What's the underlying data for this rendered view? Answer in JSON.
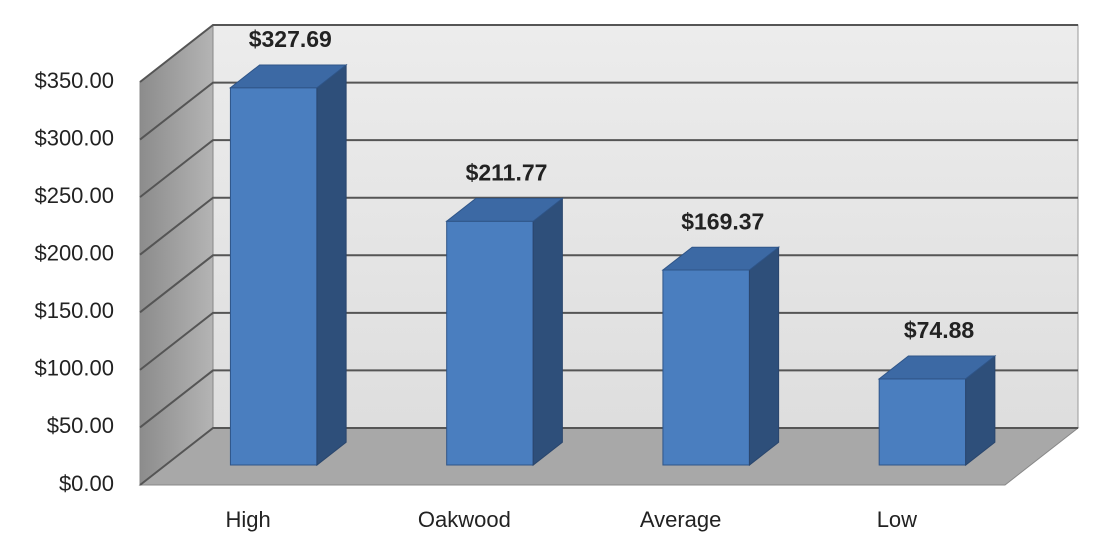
{
  "chart_data": {
    "type": "bar3d",
    "categories": [
      "High",
      "Oakwood",
      "Average",
      "Low"
    ],
    "values": [
      327.69,
      211.77,
      169.37,
      74.88
    ],
    "value_labels": [
      "$327.69",
      "$211.77",
      "$169.37",
      "$74.88"
    ],
    "color": "#4a7ebf",
    "ylim": [
      0,
      350
    ],
    "yticks": [
      {
        "value": 0,
        "label": "$0.00"
      },
      {
        "value": 50,
        "label": "$50.00"
      },
      {
        "value": 100,
        "label": "$100.00"
      },
      {
        "value": 150,
        "label": "$150.00"
      },
      {
        "value": 200,
        "label": "$200.00"
      },
      {
        "value": 250,
        "label": "$250.00"
      },
      {
        "value": 300,
        "label": "$300.00"
      },
      {
        "value": 350,
        "label": "$350.00"
      }
    ],
    "grid": true
  }
}
